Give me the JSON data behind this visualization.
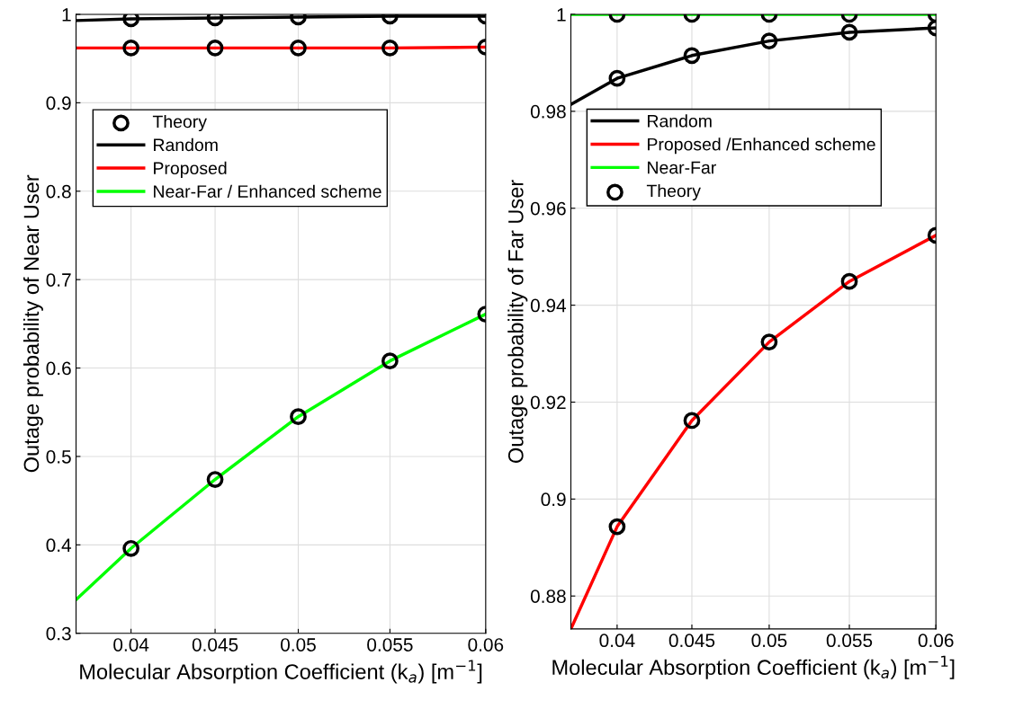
{
  "chart_data": [
    {
      "type": "line",
      "xlabel": "Molecular Absorption Coefficient (k$_{a}$) [m$^{−1}$]",
      "ylabel": "Outage probability of Near User",
      "xlim": [
        0.0369,
        0.06
      ],
      "ylim": [
        0.3,
        1
      ],
      "xticks": [
        {
          "value": 0.04,
          "label": "0.04"
        },
        {
          "value": 0.04474,
          "label": "0.045"
        },
        {
          "value": 0.04943,
          "label": "0.05"
        },
        {
          "value": 0.0546,
          "label": "0.055"
        },
        {
          "value": 0.06,
          "label": "0.06"
        }
      ],
      "yticks": [
        0.3,
        0.4,
        0.5,
        0.6,
        0.7,
        0.8,
        0.9,
        1
      ],
      "grid": true,
      "legend": "top left",
      "line_style": "solid",
      "series": [
        {
          "name": "Theory",
          "type": "scatter",
          "marker": "circle",
          "color": "#000000",
          "x": [
            0.04,
            0.04474,
            0.04943,
            0.0546,
            0.06
          ],
          "values": [
            0.995,
            0.996,
            0.997,
            0.998,
            0.998
          ]
        },
        {
          "name": "Random",
          "marker": "none",
          "color": "#000000",
          "x": [
            0.0369,
            0.04,
            0.04474,
            0.04943,
            0.0546,
            0.06
          ],
          "values": [
            0.993,
            0.995,
            0.996,
            0.997,
            0.998,
            0.998
          ]
        },
        {
          "name": "Proposed",
          "marker": "none",
          "color": "#ff0000",
          "x": [
            0.0369,
            0.04,
            0.04474,
            0.04943,
            0.0546,
            0.06
          ],
          "values": [
            0.962,
            0.962,
            0.962,
            0.962,
            0.962,
            0.963
          ]
        },
        {
          "name": "Near-Far / Enhanced scheme",
          "marker": "none",
          "color": "#00ff00",
          "x": [
            0.0369,
            0.04,
            0.04474,
            0.04943,
            0.0546,
            0.06
          ],
          "values": [
            0.338,
            0.396,
            0.474,
            0.545,
            0.608,
            0.661
          ]
        },
        {
          "type": "scatter",
          "marker": "circle",
          "color": "#000000",
          "x": [
            0.04,
            0.04474,
            0.04943,
            0.0546,
            0.06
          ],
          "values": [
            0.962,
            0.962,
            0.962,
            0.962,
            0.963
          ]
        },
        {
          "type": "scatter",
          "marker": "circle",
          "color": "#000000",
          "x": [
            0.04,
            0.04474,
            0.04943,
            0.0546,
            0.06
          ],
          "values": [
            0.396,
            0.474,
            0.545,
            0.608,
            0.661
          ]
        }
      ]
    },
    {
      "type": "line",
      "xlabel": "Molecular Absorption Coefficient (k$_{a}$) [m$^{−1}$]",
      "ylabel": "Outage probability of Far User",
      "xlim": [
        0.0371,
        0.06
      ],
      "ylim": [
        0.8732,
        1
      ],
      "xticks": [
        {
          "value": 0.04,
          "label": "0.04"
        },
        {
          "value": 0.04469,
          "label": "0.045"
        },
        {
          "value": 0.04954,
          "label": "0.05"
        },
        {
          "value": 0.05457,
          "label": "0.055"
        },
        {
          "value": 0.06,
          "label": "0.06"
        }
      ],
      "yticks": [
        0.88,
        0.9,
        0.92,
        0.94,
        0.96,
        0.98,
        {
          "value": 1,
          "label": "1"
        }
      ],
      "grid": true,
      "legend": "top left",
      "line_style": "solid",
      "series": [
        {
          "name": "Random",
          "marker": "none",
          "color": "#000000",
          "x": [
            0.0371,
            0.04,
            0.04469,
            0.04954,
            0.05457,
            0.06
          ],
          "values": [
            0.9814,
            0.9868,
            0.9915,
            0.9945,
            0.9963,
            0.9972
          ]
        },
        {
          "name": "Proposed /Enhanced scheme",
          "marker": "none",
          "color": "#ff0000",
          "x": [
            0.0371,
            0.04,
            0.04469,
            0.04954,
            0.05457,
            0.06
          ],
          "values": [
            0.8732,
            0.8943,
            0.9162,
            0.9324,
            0.9449,
            0.9544
          ]
        },
        {
          "name": "Near-Far",
          "marker": "none",
          "color": "#00ff00",
          "x": [
            0.0371,
            0.04,
            0.04469,
            0.04954,
            0.05457,
            0.06
          ],
          "values": [
            1,
            1,
            1,
            1,
            1,
            1
          ]
        },
        {
          "name": "Theory",
          "type": "scatter",
          "marker": "circle",
          "color": "#000000",
          "x": [
            0.04,
            0.04469,
            0.04954,
            0.05457,
            0.06
          ],
          "values": [
            0.9868,
            0.9915,
            0.9945,
            0.9963,
            0.9972
          ]
        },
        {
          "type": "scatter",
          "marker": "circle",
          "color": "#000000",
          "x": [
            0.04,
            0.04469,
            0.04954,
            0.05457,
            0.06
          ],
          "values": [
            0.8943,
            0.9162,
            0.9324,
            0.9449,
            0.9544
          ]
        },
        {
          "type": "scatter",
          "marker": "circle",
          "color": "#000000",
          "x": [
            0.04,
            0.04469,
            0.04954,
            0.05457,
            0.06
          ],
          "values": [
            1,
            1,
            1,
            1,
            1
          ]
        }
      ]
    }
  ]
}
